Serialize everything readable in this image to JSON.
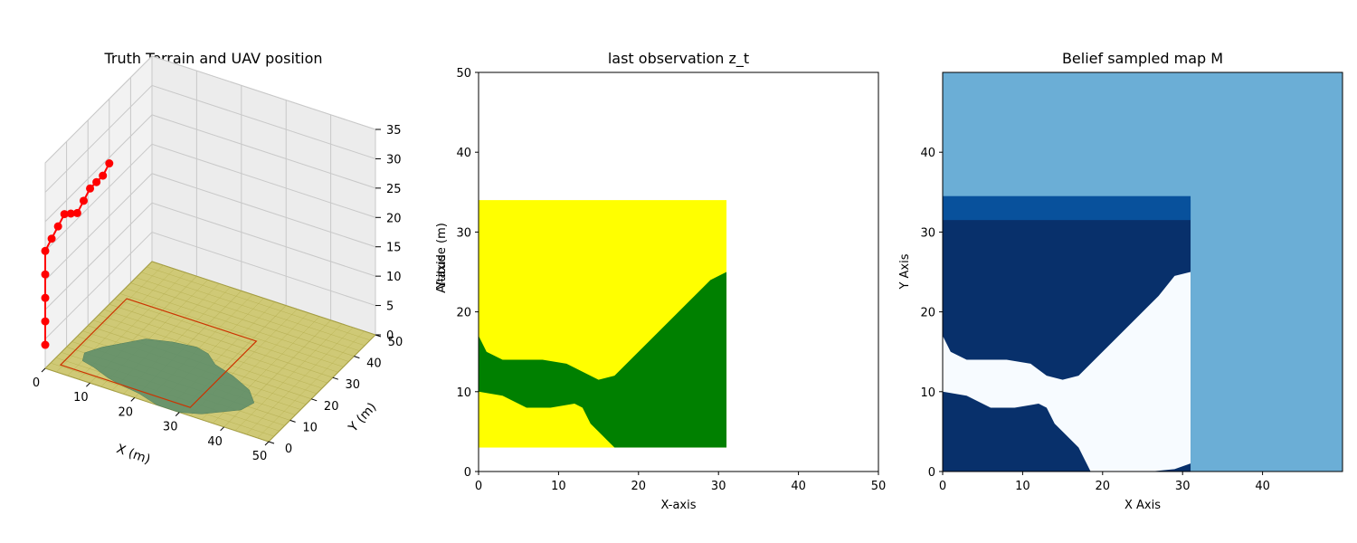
{
  "chart_data": [
    {
      "type": "scatter3d",
      "title": "Truth Terrain and UAV position",
      "xlabel": "X (m)",
      "ylabel": "Y (m)",
      "zlabel": "",
      "xlim": [
        0,
        50
      ],
      "ylim": [
        0,
        50
      ],
      "zlim": [
        0,
        35
      ],
      "xticks": [
        0,
        10,
        20,
        30,
        40,
        50
      ],
      "yticks": [
        0,
        10,
        20,
        30,
        40,
        50
      ],
      "zticks": [
        0,
        5,
        10,
        15,
        20,
        25,
        30,
        35
      ],
      "grid": true,
      "colors": {
        "terrain": "#c9c25a",
        "forest": "#5f8e6a",
        "trajectory": "#ff0000",
        "footprint": "#cc3300"
      },
      "uav_path": [
        {
          "x": 0,
          "y": 0,
          "z": 4
        },
        {
          "x": 0,
          "y": 0,
          "z": 8
        },
        {
          "x": 0,
          "y": 0,
          "z": 12
        },
        {
          "x": 0,
          "y": 0,
          "z": 16
        },
        {
          "x": 0,
          "y": 0,
          "z": 20
        },
        {
          "x": 0,
          "y": 3,
          "z": 21
        },
        {
          "x": 0,
          "y": 6,
          "z": 22
        },
        {
          "x": 0,
          "y": 9,
          "z": 23
        },
        {
          "x": 0,
          "y": 12,
          "z": 22
        },
        {
          "x": 0,
          "y": 15,
          "z": 21
        },
        {
          "x": 0,
          "y": 18,
          "z": 22
        },
        {
          "x": 0,
          "y": 21,
          "z": 23
        },
        {
          "x": 0,
          "y": 24,
          "z": 23
        },
        {
          "x": 0,
          "y": 27,
          "z": 23
        },
        {
          "x": 0,
          "y": 30,
          "z": 24
        }
      ],
      "footprint": {
        "x": [
          2,
          31
        ],
        "y": [
          3,
          34
        ]
      }
    },
    {
      "type": "heatmap",
      "title": "last observation z_t",
      "xlabel": "X-axis",
      "ylabel": "Y-axis",
      "ylabel_overlap": "Altitude (m)",
      "xlim": [
        0,
        50
      ],
      "ylim": [
        0,
        50
      ],
      "xticks": [
        0,
        10,
        20,
        30,
        40,
        50
      ],
      "yticks": [
        0,
        10,
        20,
        30,
        40,
        50
      ],
      "observed_region": {
        "x": [
          0,
          31
        ],
        "y": [
          3,
          34
        ]
      },
      "colors": {
        "field": "#ffff00",
        "forest": "#008000",
        "unobserved": "#ffffff"
      },
      "forest_upper_boundary": [
        [
          0,
          17
        ],
        [
          1,
          15
        ],
        [
          3,
          14
        ],
        [
          8,
          14
        ],
        [
          11,
          13.5
        ],
        [
          13,
          12.5
        ],
        [
          15,
          11.5
        ],
        [
          17,
          12
        ],
        [
          19,
          14
        ],
        [
          21,
          16
        ],
        [
          23,
          18
        ],
        [
          25,
          20
        ],
        [
          27,
          22
        ],
        [
          29,
          24
        ],
        [
          31,
          25
        ]
      ],
      "forest_lower_boundary": [
        [
          0,
          10
        ],
        [
          3,
          9.5
        ],
        [
          6,
          8
        ],
        [
          9,
          8
        ],
        [
          12,
          8.5
        ],
        [
          13,
          8
        ],
        [
          14,
          6
        ],
        [
          15,
          5
        ],
        [
          16,
          4
        ],
        [
          17,
          3
        ]
      ]
    },
    {
      "type": "heatmap",
      "title": "Belief sampled map M",
      "xlabel": "X Axis",
      "ylabel": "Y Axis",
      "xlim": [
        0,
        50
      ],
      "ylim": [
        0,
        50
      ],
      "xticks": [
        0,
        10,
        20,
        30,
        40
      ],
      "yticks": [
        0,
        10,
        20,
        30,
        40
      ],
      "colormap": "Blues",
      "colors": {
        "prior": "#6baed6",
        "band": "#08519c",
        "field": "#08306b",
        "forest": "#f7fbff"
      },
      "observed_region": {
        "x": [
          0,
          31
        ],
        "y": [
          0,
          34
        ]
      },
      "band": {
        "y": [
          31.5,
          34.5
        ]
      },
      "forest_upper_boundary": [
        [
          0,
          17
        ],
        [
          1,
          15
        ],
        [
          3,
          14
        ],
        [
          8,
          14
        ],
        [
          11,
          13.5
        ],
        [
          13,
          12
        ],
        [
          15,
          11.5
        ],
        [
          17,
          12
        ],
        [
          19,
          14
        ],
        [
          21,
          16
        ],
        [
          23,
          18
        ],
        [
          25,
          20
        ],
        [
          27,
          22
        ],
        [
          29,
          24.5
        ],
        [
          31,
          25
        ]
      ],
      "forest_lower_boundary": [
        [
          0,
          10
        ],
        [
          3,
          9.5
        ],
        [
          6,
          8
        ],
        [
          9,
          8
        ],
        [
          12,
          8.5
        ],
        [
          13,
          8
        ],
        [
          14,
          6
        ],
        [
          15,
          5
        ],
        [
          17,
          3
        ],
        [
          18,
          1
        ],
        [
          18.5,
          0
        ]
      ],
      "forest_right_edge": [
        [
          31,
          25
        ],
        [
          31,
          1
        ],
        [
          29,
          0.3
        ],
        [
          26,
          0
        ]
      ]
    }
  ]
}
